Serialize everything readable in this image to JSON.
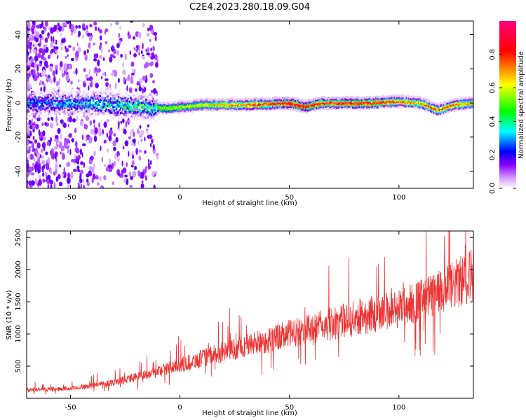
{
  "title": "C2E4.2023.280.18.09.G04",
  "chart_data": [
    {
      "type": "heatmap",
      "xlabel": "Height of straight line (km)",
      "ylabel": "Frequency (Hz)",
      "xlim": [
        -70,
        134
      ],
      "ylim": [
        -50,
        48
      ],
      "xticks": [
        -50,
        0,
        50,
        100
      ],
      "yticks": [
        -40,
        -20,
        0,
        20,
        40
      ],
      "colorbar": {
        "label": "Normalized spectral amplitude",
        "range": [
          0,
          1
        ],
        "ticks": [
          0.0,
          0.2,
          0.4,
          0.6,
          0.8
        ],
        "colors": [
          "#ffffff",
          "#8a00ff",
          "#0000ff",
          "#00ffff",
          "#00ff00",
          "#ffff00",
          "#ff0000",
          "#ff0080"
        ]
      },
      "ridge": [
        {
          "x": -70,
          "y": 0,
          "amp": 0.35
        },
        {
          "x": -40,
          "y": 0,
          "amp": 0.45
        },
        {
          "x": -20,
          "y": -2,
          "amp": 0.55
        },
        {
          "x": -5,
          "y": -3,
          "amp": 0.6
        },
        {
          "x": 10,
          "y": -1,
          "amp": 0.65
        },
        {
          "x": 30,
          "y": -1,
          "amp": 0.8
        },
        {
          "x": 50,
          "y": 0,
          "amp": 0.9
        },
        {
          "x": 57,
          "y": -2,
          "amp": 0.95
        },
        {
          "x": 65,
          "y": 0,
          "amp": 0.85
        },
        {
          "x": 85,
          "y": 0,
          "amp": 0.9
        },
        {
          "x": 100,
          "y": 1,
          "amp": 0.8
        },
        {
          "x": 110,
          "y": 0,
          "amp": 0.75
        },
        {
          "x": 118,
          "y": -4,
          "amp": 0.8
        },
        {
          "x": 125,
          "y": -1,
          "amp": 0.8
        },
        {
          "x": 134,
          "y": 0,
          "amp": 0.7
        }
      ]
    },
    {
      "type": "line",
      "xlabel": "Height of straight line (km)",
      "ylabel": "SNR (10 * v/v)",
      "xlim": [
        -70,
        134
      ],
      "ylim": [
        0,
        2600
      ],
      "xticks": [
        -50,
        0,
        50,
        100
      ],
      "yticks": [
        500,
        1000,
        1500,
        2000,
        2500
      ],
      "series": [
        {
          "color": "#ee3333",
          "x": [
            -70,
            -50,
            -30,
            -20,
            -10,
            0,
            10,
            20,
            30,
            40,
            50,
            60,
            70,
            80,
            90,
            100,
            110,
            120,
            130,
            134
          ],
          "y": [
            130,
            150,
            250,
            330,
            420,
            520,
            620,
            720,
            820,
            900,
            1000,
            1080,
            1160,
            1250,
            1330,
            1400,
            1520,
            1650,
            1850,
            1950
          ]
        }
      ]
    }
  ]
}
